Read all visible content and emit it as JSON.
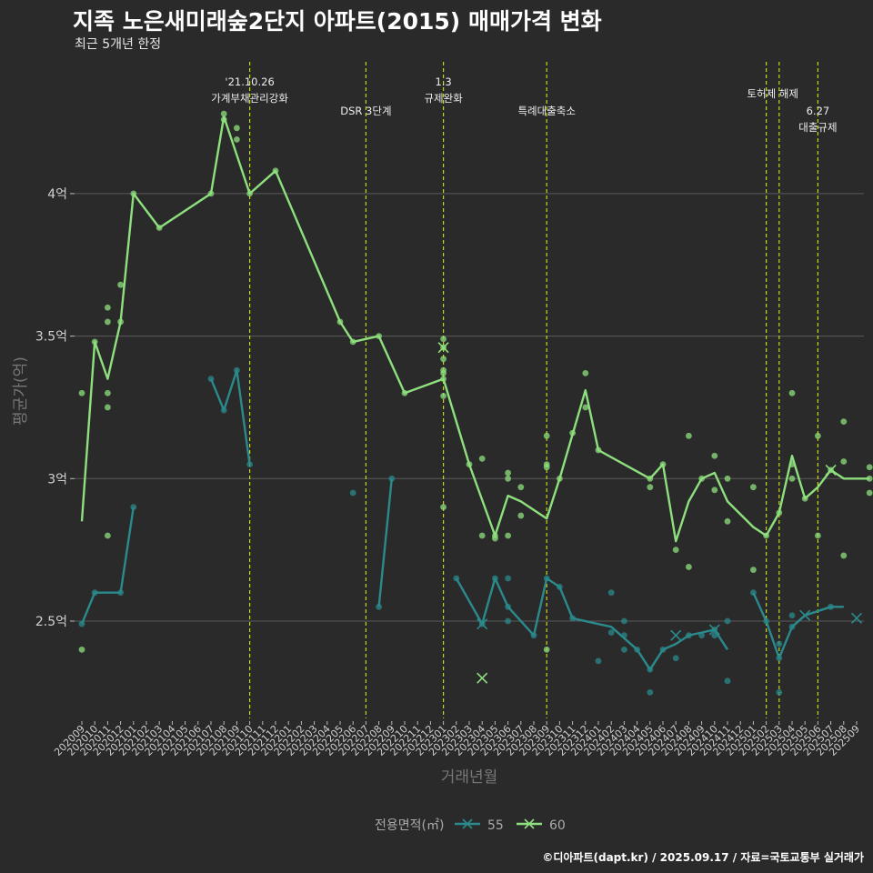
{
  "title": "지족 노은새미래숲2단지 아파트(2015) 매매가격 변화",
  "subtitle": "최근 5개년 한정",
  "caption": "©디아파트(dapt.kr) / 2025.09.17 / 자료=국토교통부 실거래가",
  "colors": {
    "background": "#2b2a2b",
    "grid": "#5a5a5a",
    "event_line": "#c8d61a",
    "series_55": "#2a8a8c",
    "series_60": "#8ee07e"
  },
  "chart_data": {
    "type": "line",
    "xlabel": "거래년월",
    "ylabel": "평균가(억)",
    "categories": [
      "202009",
      "202010",
      "202011",
      "202012",
      "202101",
      "202102",
      "202103",
      "202104",
      "202105",
      "202106",
      "202107",
      "202108",
      "202109",
      "202110",
      "202111",
      "202112",
      "202201",
      "202202",
      "202203",
      "202204",
      "202205",
      "202206",
      "202207",
      "202208",
      "202209",
      "202210",
      "202211",
      "202212",
      "202301",
      "202302",
      "202303",
      "202304",
      "202305",
      "202306",
      "202307",
      "202308",
      "202309",
      "202310",
      "202311",
      "202312",
      "202401",
      "202402",
      "202403",
      "202404",
      "202405",
      "202406",
      "202407",
      "202408",
      "202409",
      "202410",
      "202411",
      "202412",
      "202501",
      "202502",
      "202503",
      "202504",
      "202505",
      "202506",
      "202507",
      "202508",
      "202509"
    ],
    "yticks": [
      {
        "value": 2.5,
        "label": "2.5억"
      },
      {
        "value": 3.0,
        "label": "3억"
      },
      {
        "value": 3.5,
        "label": "3.5억"
      },
      {
        "value": 4.0,
        "label": "4억"
      }
    ],
    "ylim": [
      2.2,
      4.42
    ],
    "grid": true,
    "legend": {
      "title": "전용면적(㎡)",
      "position": "bottom"
    },
    "events": [
      {
        "x": "202110",
        "lines": [
          "'21.10.26",
          "가계부채관리강화"
        ],
        "tier": 0
      },
      {
        "x": "202207",
        "lines": [
          "DSR 3단계"
        ],
        "tier": 1
      },
      {
        "x": "202301",
        "lines": [
          "1.3",
          "규제완화"
        ],
        "tier": 0
      },
      {
        "x": "202309",
        "lines": [
          "특례대출축소"
        ],
        "tier": 1
      },
      {
        "x": "202502",
        "lines": [
          "토허제 해제"
        ],
        "tier": 0.4,
        "anchor": "x-between",
        "pair": "202503"
      },
      {
        "x": "202503",
        "lines": [],
        "tier": 0
      },
      {
        "x": "202506",
        "lines": [
          "6.27",
          "대출규제"
        ],
        "tier": 1.0
      }
    ],
    "series": [
      {
        "name": "55",
        "line": [
          [
            [
              "202009",
              2.49
            ],
            [
              "202010",
              2.6
            ],
            [
              "202012",
              2.6
            ],
            [
              "202101",
              2.9
            ]
          ],
          [
            [
              "202107",
              3.35
            ],
            [
              "202108",
              3.24
            ],
            [
              "202109",
              3.38
            ],
            [
              "202110",
              3.05
            ]
          ],
          [
            [
              "202208",
              2.55
            ],
            [
              "202209",
              3.0
            ]
          ],
          [
            [
              "202302",
              2.65
            ],
            [
              "202304",
              2.49
            ],
            [
              "202305",
              2.65
            ],
            [
              "202306",
              2.55
            ],
            [
              "202308",
              2.45
            ],
            [
              "202309",
              2.65
            ],
            [
              "202310",
              2.62
            ],
            [
              "202311",
              2.51
            ],
            [
              "202402",
              2.48
            ],
            [
              "202404",
              2.4
            ],
            [
              "202405",
              2.33
            ],
            [
              "202406",
              2.4
            ],
            [
              "202407",
              2.42
            ],
            [
              "202408",
              2.45
            ],
            [
              "202410",
              2.47
            ],
            [
              "202411",
              2.4
            ]
          ],
          [
            [
              "202501",
              2.6
            ],
            [
              "202502",
              2.5
            ],
            [
              "202503",
              2.37
            ],
            [
              "202504",
              2.48
            ],
            [
              "202505",
              2.52
            ],
            [
              "202507",
              2.55
            ],
            [
              "202508",
              2.55
            ]
          ]
        ],
        "points": [
          [
            "202009",
            2.49
          ],
          [
            "202010",
            2.6
          ],
          [
            "202012",
            2.6
          ],
          [
            "202101",
            2.9
          ],
          [
            "202107",
            3.35
          ],
          [
            "202108",
            3.24
          ],
          [
            "202109",
            3.38
          ],
          [
            "202110",
            3.05
          ],
          [
            "202206",
            2.95
          ],
          [
            "202208",
            2.55
          ],
          [
            "202209",
            3.0
          ],
          [
            "202302",
            2.65
          ],
          [
            "202304",
            2.49
          ],
          [
            "202305",
            2.65
          ],
          [
            "202306",
            2.65
          ],
          [
            "202306",
            2.55
          ],
          [
            "202306",
            2.5
          ],
          [
            "202308",
            2.45
          ],
          [
            "202309",
            2.65
          ],
          [
            "202310",
            2.62
          ],
          [
            "202311",
            2.51
          ],
          [
            "202401",
            2.36
          ],
          [
            "202402",
            2.46
          ],
          [
            "202402",
            2.6
          ],
          [
            "202403",
            2.5
          ],
          [
            "202403",
            2.45
          ],
          [
            "202403",
            2.4
          ],
          [
            "202404",
            2.4
          ],
          [
            "202405",
            2.25
          ],
          [
            "202405",
            2.33
          ],
          [
            "202406",
            2.4
          ],
          [
            "202407",
            2.37
          ],
          [
            "202408",
            2.45
          ],
          [
            "202409",
            2.45
          ],
          [
            "202410",
            2.47
          ],
          [
            "202410",
            2.45
          ],
          [
            "202411",
            2.29
          ],
          [
            "202411",
            2.5
          ],
          [
            "202501",
            2.6
          ],
          [
            "202502",
            2.5
          ],
          [
            "202503",
            2.25
          ],
          [
            "202503",
            2.37
          ],
          [
            "202503",
            2.42
          ],
          [
            "202504",
            2.48
          ],
          [
            "202504",
            2.52
          ],
          [
            "202507",
            2.55
          ]
        ],
        "crosses": [
          [
            "202304",
            2.49
          ],
          [
            "202407",
            2.45
          ],
          [
            "202410",
            2.47
          ],
          [
            "202505",
            2.52
          ],
          [
            "202509",
            2.51
          ]
        ]
      },
      {
        "name": "60",
        "line": [
          [
            [
              "202009",
              2.85
            ],
            [
              "202010",
              3.48
            ],
            [
              "202011",
              3.35
            ],
            [
              "202012",
              3.55
            ],
            [
              "202101",
              4.0
            ],
            [
              "202103",
              3.88
            ],
            [
              "202107",
              4.0
            ],
            [
              "202108",
              4.27
            ],
            [
              "202110",
              4.0
            ],
            [
              "202112",
              4.08
            ],
            [
              "202205",
              3.55
            ],
            [
              "202206",
              3.48
            ],
            [
              "202208",
              3.5
            ],
            [
              "202210",
              3.3
            ],
            [
              "202301",
              3.35
            ],
            [
              "202303",
              3.05
            ],
            [
              "202305",
              2.8
            ],
            [
              "202306",
              2.94
            ],
            [
              "202307",
              2.92
            ],
            [
              "202309",
              2.86
            ],
            [
              "202310",
              3.0
            ],
            [
              "202312",
              3.31
            ],
            [
              "202401",
              3.1
            ],
            [
              "202405",
              3.0
            ],
            [
              "202406",
              3.05
            ],
            [
              "202407",
              2.78
            ],
            [
              "202408",
              2.92
            ],
            [
              "202409",
              3.0
            ],
            [
              "202410",
              3.02
            ],
            [
              "202411",
              2.92
            ],
            [
              "202501",
              2.83
            ],
            [
              "202502",
              2.8
            ],
            [
              "202503",
              2.88
            ],
            [
              "202504",
              3.08
            ],
            [
              "202505",
              2.93
            ],
            [
              "202506",
              2.97
            ],
            [
              "202507",
              3.03
            ],
            [
              "202508",
              3.0
            ],
            [
              "202510",
              3.0
            ]
          ]
        ],
        "points": [
          [
            "202009",
            3.3
          ],
          [
            "202009",
            2.4
          ],
          [
            "202010",
            3.48
          ],
          [
            "202011",
            3.6
          ],
          [
            "202011",
            3.55
          ],
          [
            "202011",
            3.3
          ],
          [
            "202011",
            3.25
          ],
          [
            "202011",
            2.8
          ],
          [
            "202012",
            3.68
          ],
          [
            "202012",
            3.55
          ],
          [
            "202101",
            4.0
          ],
          [
            "202103",
            3.88
          ],
          [
            "202107",
            4.0
          ],
          [
            "202108",
            4.28
          ],
          [
            "202108",
            4.26
          ],
          [
            "202109",
            4.23
          ],
          [
            "202109",
            4.19
          ],
          [
            "202110",
            4.0
          ],
          [
            "202112",
            4.08
          ],
          [
            "202205",
            3.55
          ],
          [
            "202206",
            3.48
          ],
          [
            "202208",
            3.5
          ],
          [
            "202210",
            3.3
          ],
          [
            "202301",
            3.49
          ],
          [
            "202301",
            3.46
          ],
          [
            "202301",
            3.42
          ],
          [
            "202301",
            3.38
          ],
          [
            "202301",
            3.37
          ],
          [
            "202301",
            3.35
          ],
          [
            "202301",
            3.29
          ],
          [
            "202301",
            2.9
          ],
          [
            "202303",
            3.05
          ],
          [
            "202304",
            2.8
          ],
          [
            "202304",
            3.07
          ],
          [
            "202305",
            2.8
          ],
          [
            "202305",
            2.79
          ],
          [
            "202306",
            3.02
          ],
          [
            "202306",
            3.0
          ],
          [
            "202306",
            2.8
          ],
          [
            "202307",
            2.97
          ],
          [
            "202307",
            2.87
          ],
          [
            "202309",
            3.15
          ],
          [
            "202309",
            3.05
          ],
          [
            "202309",
            3.04
          ],
          [
            "202309",
            2.4
          ],
          [
            "202310",
            3.0
          ],
          [
            "202311",
            3.16
          ],
          [
            "202312",
            3.37
          ],
          [
            "202312",
            3.25
          ],
          [
            "202401",
            3.1
          ],
          [
            "202405",
            3.0
          ],
          [
            "202405",
            2.97
          ],
          [
            "202406",
            3.05
          ],
          [
            "202407",
            2.75
          ],
          [
            "202408",
            3.15
          ],
          [
            "202408",
            2.69
          ],
          [
            "202409",
            3.0
          ],
          [
            "202410",
            3.08
          ],
          [
            "202410",
            2.96
          ],
          [
            "202411",
            3.0
          ],
          [
            "202411",
            2.85
          ],
          [
            "202501",
            2.97
          ],
          [
            "202501",
            2.68
          ],
          [
            "202502",
            2.8
          ],
          [
            "202503",
            2.88
          ],
          [
            "202504",
            3.3
          ],
          [
            "202504",
            3.05
          ],
          [
            "202504",
            3.0
          ],
          [
            "202505",
            2.93
          ],
          [
            "202506",
            3.15
          ],
          [
            "202506",
            2.8
          ],
          [
            "202507",
            3.03
          ],
          [
            "202508",
            3.2
          ],
          [
            "202508",
            3.06
          ],
          [
            "202508",
            2.73
          ],
          [
            "202510",
            3.04
          ],
          [
            "202510",
            3.0
          ],
          [
            "202510",
            2.95
          ]
        ],
        "crosses": [
          [
            "202301",
            3.46
          ],
          [
            "202304",
            2.3
          ],
          [
            "202507",
            3.03
          ]
        ]
      }
    ]
  }
}
